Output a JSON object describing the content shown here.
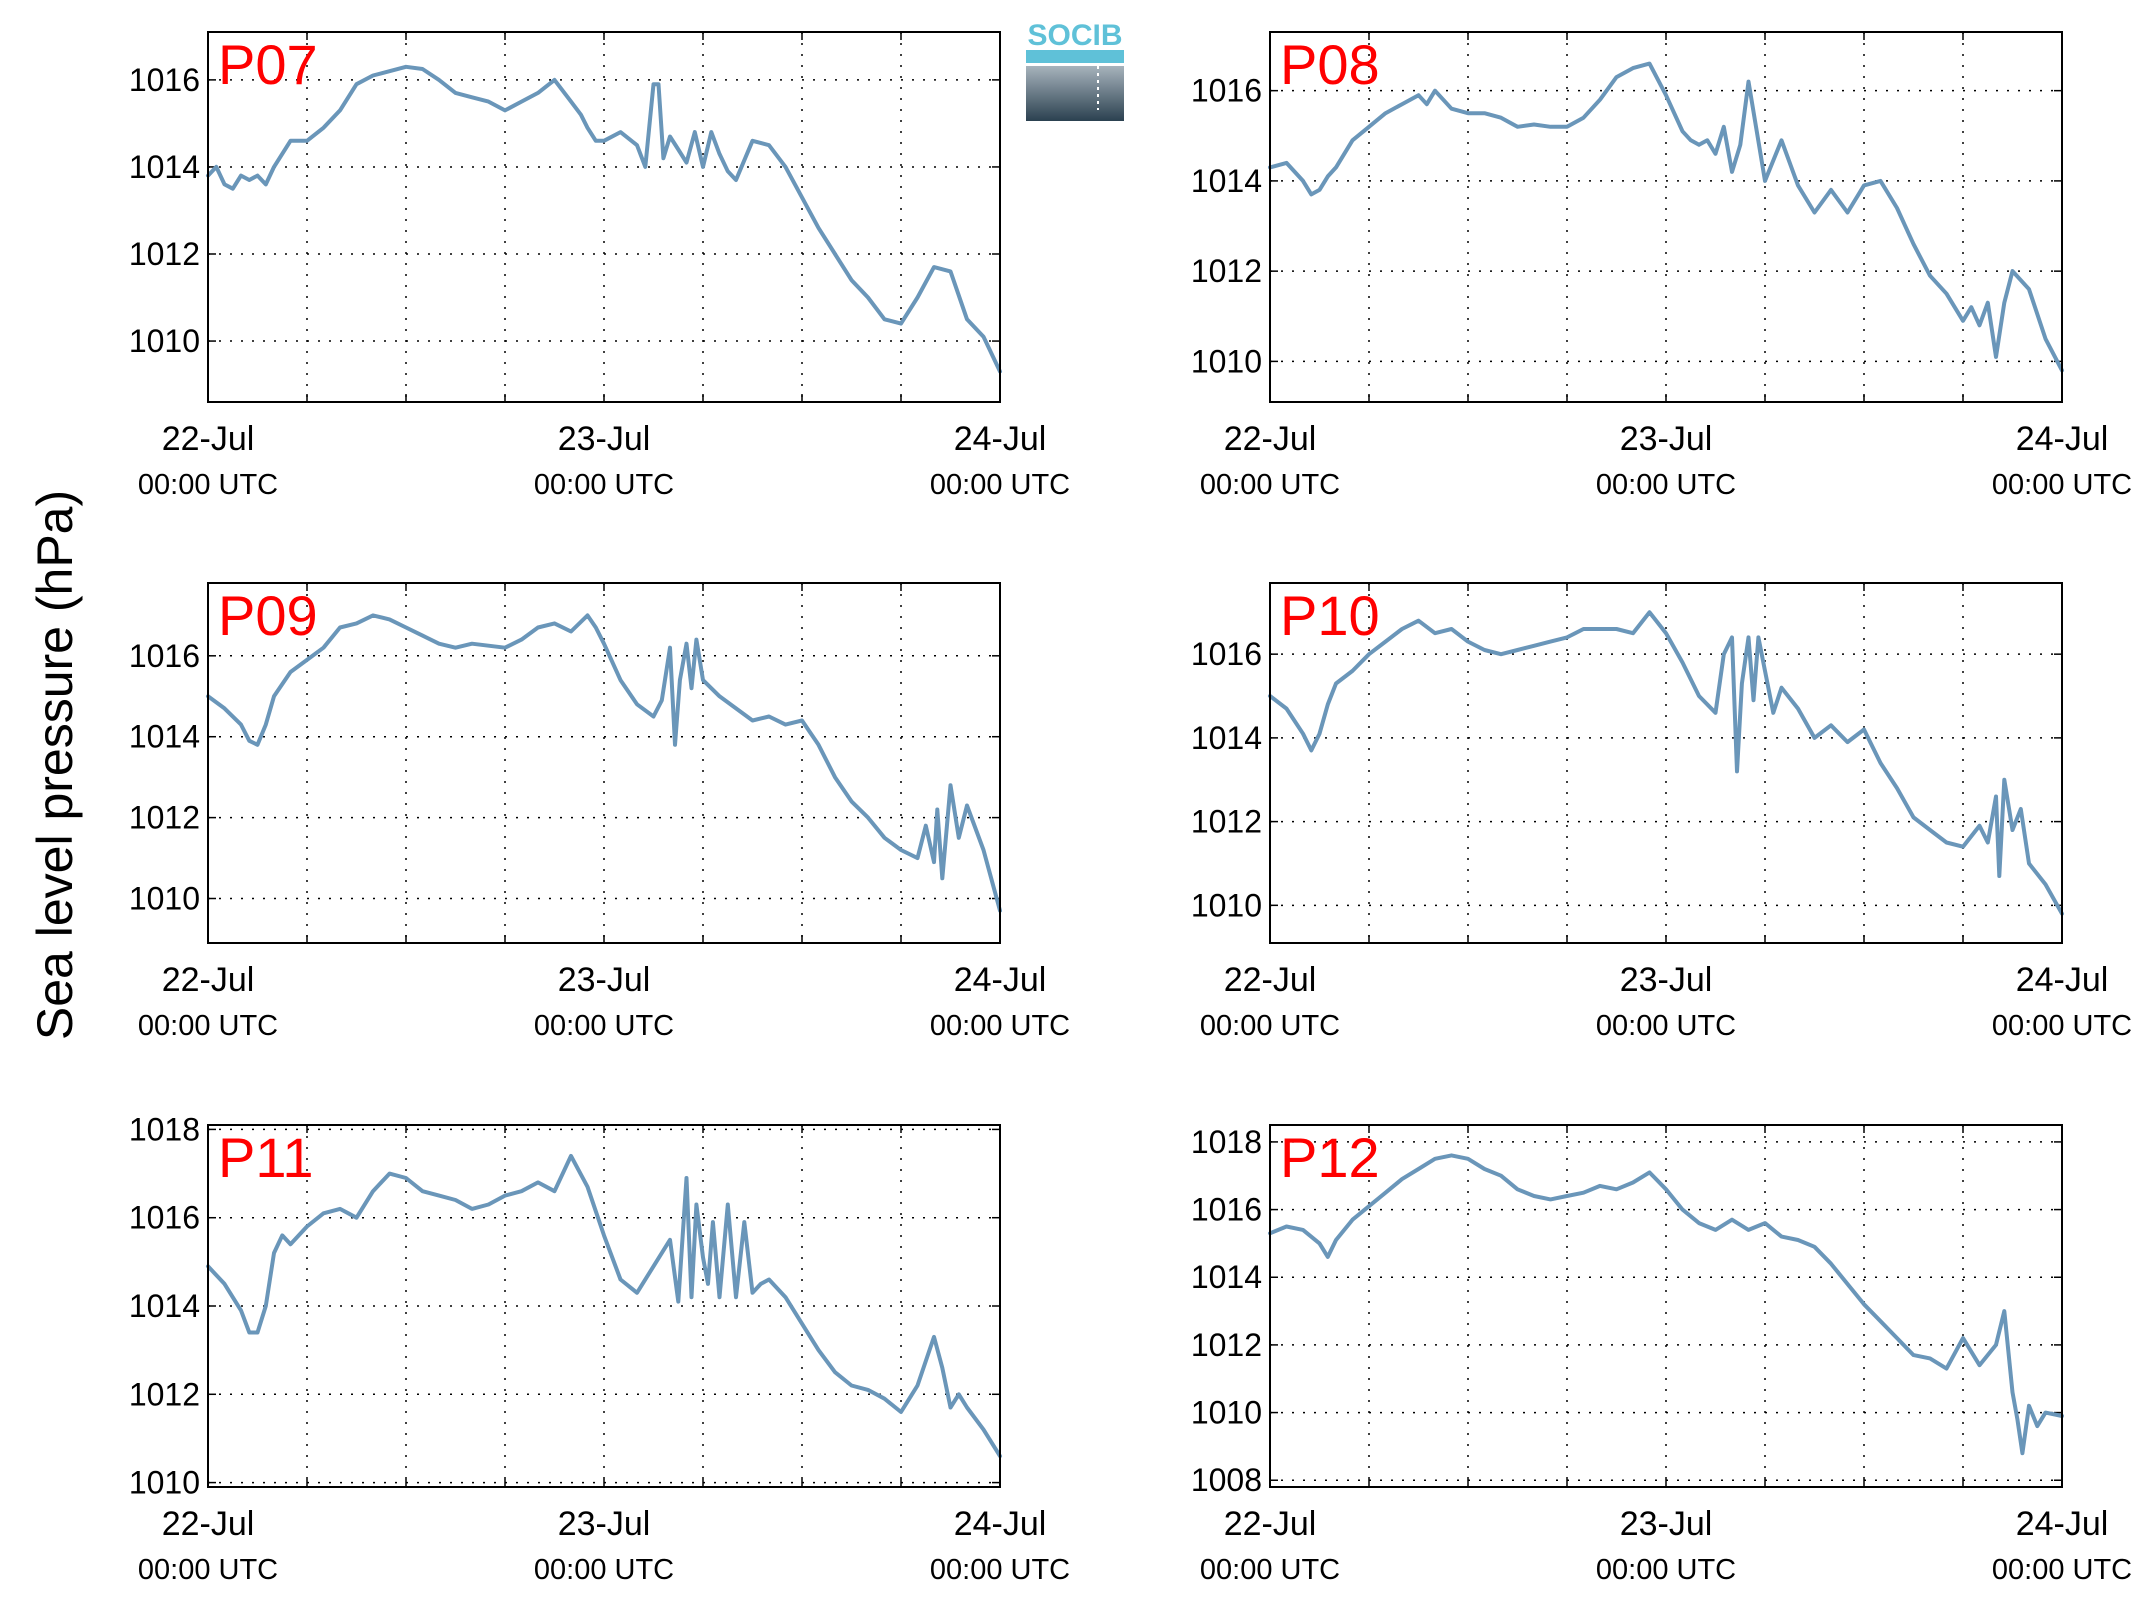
{
  "figure": {
    "ylabel": "Sea level pressure (hPa)",
    "logo_text": "SOCIB",
    "line_color": "#6a96b9",
    "station_label_color": "#ff0000",
    "time_labels": [
      {
        "date": "22-Jul",
        "time": "00:00 UTC"
      },
      {
        "date": "23-Jul",
        "time": "00:00 UTC"
      },
      {
        "date": "24-Jul",
        "time": "00:00 UTC"
      }
    ]
  },
  "chart_data": [
    {
      "type": "line",
      "title": "P07",
      "xlim": [
        0,
        48
      ],
      "ylim": [
        1008.6,
        1017.1
      ],
      "yticks": [
        1010,
        1012,
        1014,
        1016
      ],
      "grid": true,
      "x": [
        0,
        0.5,
        1,
        1.5,
        2,
        2.5,
        3,
        3.5,
        4,
        5,
        6,
        7,
        8,
        9,
        10,
        11,
        12,
        13,
        14,
        15,
        16,
        17,
        18,
        19,
        20,
        21,
        22,
        22.6,
        23,
        23.5,
        24,
        25,
        26,
        26.5,
        27,
        27.3,
        27.6,
        28,
        28.5,
        29,
        29.5,
        30,
        30.5,
        31,
        31.5,
        32,
        33,
        34,
        35,
        36,
        37,
        38,
        39,
        40,
        41,
        42,
        43,
        44,
        45,
        46,
        47,
        48
      ],
      "y": [
        1013.8,
        1014.0,
        1013.6,
        1013.5,
        1013.8,
        1013.7,
        1013.8,
        1013.6,
        1014.0,
        1014.6,
        1014.6,
        1014.9,
        1015.3,
        1015.9,
        1016.1,
        1016.2,
        1016.3,
        1016.25,
        1016.0,
        1015.7,
        1015.6,
        1015.5,
        1015.3,
        1015.5,
        1015.7,
        1016.0,
        1015.5,
        1015.2,
        1014.9,
        1014.6,
        1014.6,
        1014.8,
        1014.5,
        1014.0,
        1015.9,
        1015.9,
        1014.2,
        1014.7,
        1014.4,
        1014.1,
        1014.8,
        1014.0,
        1014.8,
        1014.3,
        1013.9,
        1013.7,
        1014.6,
        1014.5,
        1014.0,
        1013.3,
        1012.6,
        1012.0,
        1011.4,
        1011.0,
        1010.5,
        1010.4,
        1011.0,
        1011.7,
        1011.6,
        1010.5,
        1010.1,
        1009.3
      ]
    },
    {
      "type": "line",
      "title": "P08",
      "xlim": [
        0,
        48
      ],
      "ylim": [
        1009.1,
        1017.3
      ],
      "yticks": [
        1010,
        1012,
        1014,
        1016
      ],
      "grid": true,
      "x": [
        0,
        1,
        2,
        2.5,
        3,
        3.5,
        4,
        5,
        6,
        7,
        8,
        9,
        9.5,
        10,
        11,
        12,
        13,
        14,
        15,
        16,
        17,
        18,
        19,
        20,
        21,
        22,
        23,
        24,
        25,
        25.5,
        26,
        26.5,
        27,
        27.5,
        28,
        28.5,
        29,
        30,
        31,
        32,
        33,
        34,
        35,
        36,
        37,
        38,
        39,
        40,
        41,
        42,
        42.5,
        43,
        43.5,
        44,
        44.5,
        45,
        46,
        47,
        48
      ],
      "y": [
        1014.3,
        1014.4,
        1014.0,
        1013.7,
        1013.8,
        1014.1,
        1014.3,
        1014.9,
        1015.2,
        1015.5,
        1015.7,
        1015.9,
        1015.7,
        1016.0,
        1015.6,
        1015.5,
        1015.5,
        1015.4,
        1015.2,
        1015.25,
        1015.2,
        1015.2,
        1015.4,
        1015.8,
        1016.3,
        1016.5,
        1016.6,
        1015.9,
        1015.1,
        1014.9,
        1014.8,
        1014.9,
        1014.6,
        1015.2,
        1014.2,
        1014.8,
        1016.2,
        1014.0,
        1014.9,
        1013.9,
        1013.3,
        1013.8,
        1013.3,
        1013.9,
        1014.0,
        1013.4,
        1012.6,
        1011.9,
        1011.5,
        1010.9,
        1011.2,
        1010.8,
        1011.3,
        1010.1,
        1011.3,
        1012.0,
        1011.6,
        1010.5,
        1009.8
      ]
    },
    {
      "type": "line",
      "title": "P09",
      "xlim": [
        0,
        48
      ],
      "ylim": [
        1008.9,
        1017.8
      ],
      "yticks": [
        1010,
        1012,
        1014,
        1016
      ],
      "grid": true,
      "x": [
        0,
        1,
        2,
        2.5,
        3,
        3.5,
        4,
        5,
        6,
        7,
        8,
        9,
        10,
        11,
        12,
        13,
        14,
        15,
        16,
        17,
        18,
        19,
        20,
        21,
        22,
        23,
        23.5,
        24,
        25,
        26,
        27,
        27.5,
        28,
        28.3,
        28.6,
        29,
        29.3,
        29.6,
        30,
        31,
        32,
        33,
        34,
        35,
        36,
        37,
        38,
        39,
        40,
        41,
        42,
        43,
        43.5,
        44,
        44.2,
        44.5,
        45,
        45.5,
        46,
        47,
        48
      ],
      "y": [
        1015.0,
        1014.7,
        1014.3,
        1013.9,
        1013.8,
        1014.3,
        1015.0,
        1015.6,
        1015.9,
        1016.2,
        1016.7,
        1016.8,
        1017.0,
        1016.9,
        1016.7,
        1016.5,
        1016.3,
        1016.2,
        1016.3,
        1016.25,
        1016.2,
        1016.4,
        1016.7,
        1016.8,
        1016.6,
        1017.0,
        1016.7,
        1016.3,
        1015.4,
        1014.8,
        1014.5,
        1014.9,
        1016.2,
        1013.8,
        1015.4,
        1016.3,
        1015.2,
        1016.4,
        1015.4,
        1015.0,
        1014.7,
        1014.4,
        1014.5,
        1014.3,
        1014.4,
        1013.8,
        1013.0,
        1012.4,
        1012.0,
        1011.5,
        1011.2,
        1011.0,
        1011.8,
        1010.9,
        1012.2,
        1010.5,
        1012.8,
        1011.5,
        1012.3,
        1011.2,
        1009.7
      ]
    },
    {
      "type": "line",
      "title": "P10",
      "xlim": [
        0,
        48
      ],
      "ylim": [
        1009.1,
        1017.7
      ],
      "yticks": [
        1010,
        1012,
        1014,
        1016
      ],
      "grid": true,
      "x": [
        0,
        1,
        2,
        2.5,
        3,
        3.5,
        4,
        5,
        6,
        7,
        8,
        9,
        10,
        11,
        12,
        13,
        14,
        15,
        16,
        17,
        18,
        19,
        20,
        21,
        22,
        23,
        24,
        25,
        26,
        27,
        27.5,
        28,
        28.3,
        28.6,
        29,
        29.3,
        29.6,
        30,
        30.5,
        31,
        32,
        33,
        34,
        35,
        36,
        37,
        38,
        39,
        40,
        41,
        42,
        43,
        43.5,
        44,
        44.2,
        44.5,
        45,
        45.5,
        46,
        47,
        48
      ],
      "y": [
        1015.0,
        1014.7,
        1014.1,
        1013.7,
        1014.1,
        1014.8,
        1015.3,
        1015.6,
        1016.0,
        1016.3,
        1016.6,
        1016.8,
        1016.5,
        1016.6,
        1016.3,
        1016.1,
        1016.0,
        1016.1,
        1016.2,
        1016.3,
        1016.4,
        1016.6,
        1016.6,
        1016.6,
        1016.5,
        1017.0,
        1016.5,
        1015.8,
        1015.0,
        1014.6,
        1016.0,
        1016.4,
        1013.2,
        1015.3,
        1016.4,
        1014.9,
        1016.4,
        1015.6,
        1014.6,
        1015.2,
        1014.7,
        1014.0,
        1014.3,
        1013.9,
        1014.2,
        1013.4,
        1012.8,
        1012.1,
        1011.8,
        1011.5,
        1011.4,
        1011.9,
        1011.5,
        1012.6,
        1010.7,
        1013.0,
        1011.8,
        1012.3,
        1011.0,
        1010.5,
        1009.8
      ]
    },
    {
      "type": "line",
      "title": "P11",
      "xlim": [
        0,
        48
      ],
      "ylim": [
        1009.9,
        1018.1
      ],
      "yticks": [
        1010,
        1012,
        1014,
        1016,
        1018
      ],
      "grid": true,
      "x": [
        0,
        1,
        2,
        2.5,
        3,
        3.5,
        4,
        4.5,
        5,
        6,
        7,
        8,
        9,
        10,
        11,
        12,
        13,
        14,
        15,
        16,
        17,
        18,
        19,
        20,
        21,
        22,
        23,
        24,
        25,
        26,
        27,
        28,
        28.5,
        29,
        29.3,
        29.6,
        30,
        30.3,
        30.6,
        31,
        31.5,
        32,
        32.5,
        33,
        33.5,
        34,
        35,
        36,
        37,
        38,
        39,
        40,
        41,
        42,
        43,
        44,
        44.5,
        45,
        45.5,
        46,
        47,
        48
      ],
      "y": [
        1014.9,
        1014.5,
        1013.9,
        1013.4,
        1013.4,
        1014.0,
        1015.2,
        1015.6,
        1015.4,
        1015.8,
        1016.1,
        1016.2,
        1016.0,
        1016.6,
        1017.0,
        1016.9,
        1016.6,
        1016.5,
        1016.4,
        1016.2,
        1016.3,
        1016.5,
        1016.6,
        1016.8,
        1016.6,
        1017.4,
        1016.7,
        1015.6,
        1014.6,
        1014.3,
        1014.9,
        1015.5,
        1014.1,
        1016.9,
        1014.2,
        1016.3,
        1015.1,
        1014.5,
        1015.9,
        1014.2,
        1016.3,
        1014.2,
        1015.9,
        1014.3,
        1014.5,
        1014.6,
        1014.2,
        1013.6,
        1013.0,
        1012.5,
        1012.2,
        1012.1,
        1011.9,
        1011.6,
        1012.2,
        1013.3,
        1012.6,
        1011.7,
        1012.0,
        1011.7,
        1011.2,
        1010.6
      ]
    },
    {
      "type": "line",
      "title": "P12",
      "xlim": [
        0,
        48
      ],
      "ylim": [
        1007.8,
        1018.5
      ],
      "yticks": [
        1008,
        1010,
        1012,
        1014,
        1016,
        1018
      ],
      "grid": true,
      "x": [
        0,
        1,
        2,
        3,
        3.5,
        4,
        5,
        6,
        7,
        8,
        9,
        10,
        11,
        12,
        13,
        14,
        15,
        16,
        17,
        18,
        19,
        20,
        21,
        22,
        23,
        24,
        25,
        26,
        27,
        28,
        29,
        30,
        31,
        32,
        33,
        34,
        35,
        36,
        37,
        38,
        39,
        40,
        41,
        42,
        43,
        44,
        44.5,
        45,
        45.3,
        45.6,
        46,
        46.5,
        47,
        48
      ],
      "y": [
        1015.3,
        1015.5,
        1015.4,
        1015.0,
        1014.6,
        1015.1,
        1015.7,
        1016.1,
        1016.5,
        1016.9,
        1017.2,
        1017.5,
        1017.6,
        1017.5,
        1017.2,
        1017.0,
        1016.6,
        1016.4,
        1016.3,
        1016.4,
        1016.5,
        1016.7,
        1016.6,
        1016.8,
        1017.1,
        1016.6,
        1016.0,
        1015.6,
        1015.4,
        1015.7,
        1015.4,
        1015.6,
        1015.2,
        1015.1,
        1014.9,
        1014.4,
        1013.8,
        1013.2,
        1012.7,
        1012.2,
        1011.7,
        1011.6,
        1011.3,
        1012.2,
        1011.4,
        1012.0,
        1013.0,
        1010.6,
        1009.8,
        1008.8,
        1010.2,
        1009.6,
        1010.0,
        1009.9
      ]
    }
  ]
}
